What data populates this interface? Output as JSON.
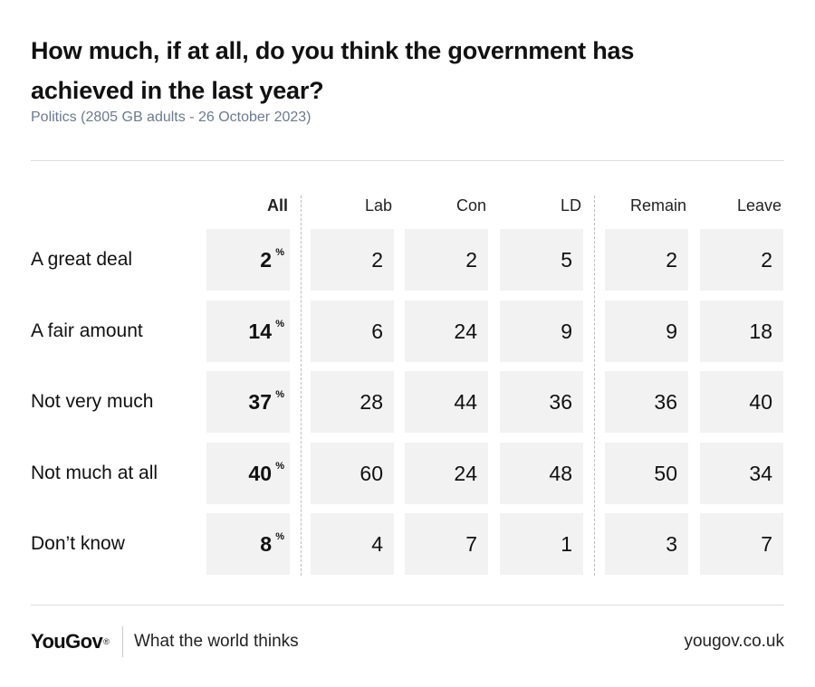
{
  "header": {
    "title": "How much, if at all, do you think the government has achieved in the last year?",
    "subtitle": "Politics (2805 GB adults - 26 October 2023)"
  },
  "chart_data": {
    "type": "table",
    "columns": [
      "All",
      "Lab",
      "Con",
      "LD",
      "Remain",
      "Leave"
    ],
    "rows": [
      {
        "label": "A great deal",
        "values": [
          2,
          2,
          2,
          5,
          2,
          2
        ]
      },
      {
        "label": "A fair amount",
        "values": [
          14,
          6,
          24,
          9,
          9,
          18
        ]
      },
      {
        "label": "Not very much",
        "values": [
          37,
          28,
          44,
          36,
          36,
          40
        ]
      },
      {
        "label": "Not much at all",
        "values": [
          40,
          60,
          24,
          48,
          50,
          34
        ]
      },
      {
        "label": "Don’t know",
        "values": [
          8,
          4,
          7,
          1,
          3,
          7
        ]
      }
    ],
    "all_unit": "%"
  },
  "footer": {
    "logo": "YouGov",
    "logo_mark": "®",
    "tagline": "What the world thinks",
    "url": "yougov.co.uk"
  },
  "colors": {
    "cell_bg": "#f2f2f2",
    "subtitle": "#6b7a90",
    "divider": "#b8bcc4"
  }
}
